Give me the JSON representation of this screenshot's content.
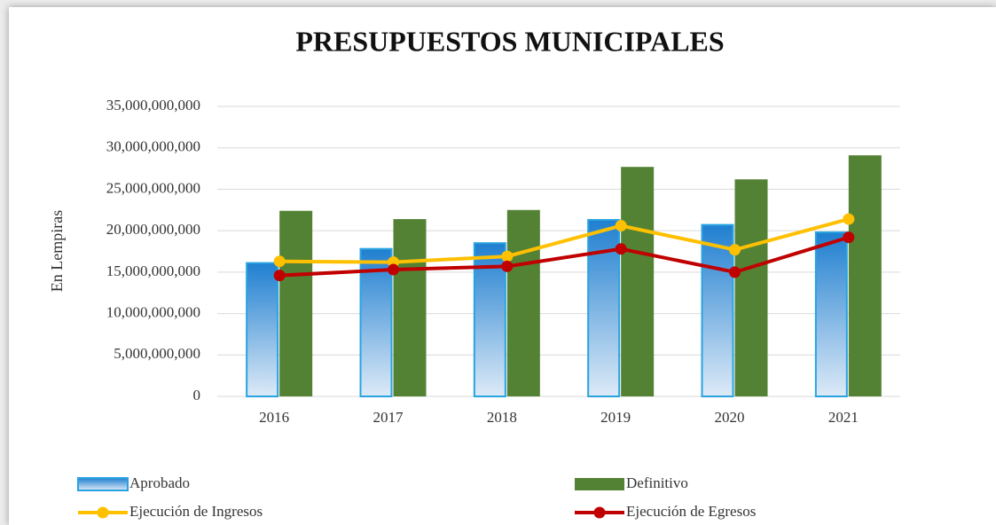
{
  "chart_data": {
    "type": "bar_line",
    "title": "PRESUPUESTOS MUNICIPALES",
    "y_label": "En Lempiras",
    "categories": [
      "2016",
      "2017",
      "2018",
      "2019",
      "2020",
      "2021"
    ],
    "series": [
      {
        "name": "Aprobado",
        "type": "bar",
        "color": "#1f7fd0",
        "values": [
          16100000000,
          17800000000,
          18500000000,
          21300000000,
          20700000000,
          19800000000
        ]
      },
      {
        "name": "Definitivo",
        "type": "bar",
        "color": "#548235",
        "values": [
          22400000000,
          21400000000,
          22500000000,
          27700000000,
          26200000000,
          29100000000
        ]
      },
      {
        "name": "Ejecución de Ingresos",
        "type": "line",
        "color": "#ffc000",
        "values": [
          16300000000,
          16200000000,
          16900000000,
          20600000000,
          17700000000,
          21400000000
        ]
      },
      {
        "name": "Ejecución de Egresos",
        "type": "line",
        "color": "#c00000",
        "values": [
          14600000000,
          15300000000,
          15700000000,
          17800000000,
          15000000000,
          19200000000
        ]
      }
    ],
    "ylim": [
      0,
      35000000000
    ],
    "yticks": [
      0,
      {
        "value": 5000000000,
        "label": "5,000,000,000"
      },
      {
        "value": 10000000000,
        "label": "10,000,000,000"
      },
      {
        "value": 15000000000,
        "label": "15,000,000,000"
      },
      {
        "value": 20000000000,
        "label": "20,000,000,000"
      },
      {
        "value": 25000000000,
        "label": "25,000,000,000"
      },
      {
        "value": 30000000000,
        "label": "30,000,000,000"
      },
      {
        "value": 35000000000,
        "label": "35,000,000,000"
      }
    ],
    "grid": true
  }
}
